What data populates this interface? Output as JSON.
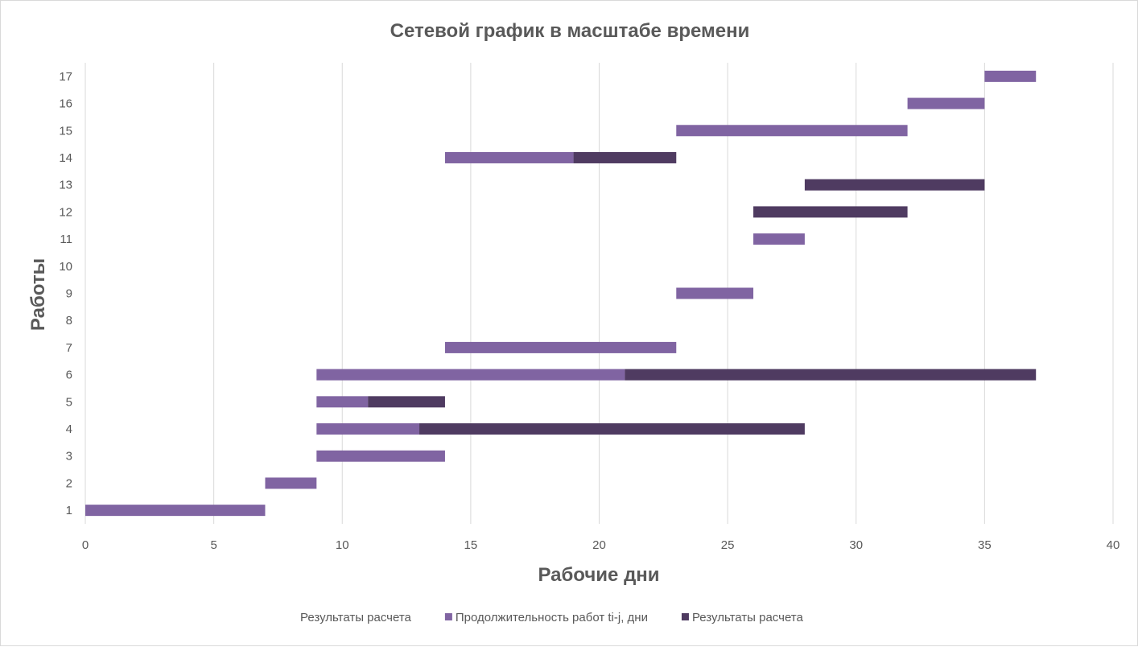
{
  "chart_data": {
    "type": "bar",
    "orientation": "horizontal",
    "stacked": true,
    "title": "Сетевой график в масштабе времени",
    "xlabel": "Рабочие дни",
    "ylabel": "Работы",
    "xlim": [
      0,
      40
    ],
    "xticks": [
      0,
      5,
      10,
      15,
      20,
      25,
      30,
      35,
      40
    ],
    "categories": [
      "1",
      "2",
      "3",
      "4",
      "5",
      "6",
      "7",
      "8",
      "9",
      "10",
      "11",
      "12",
      "13",
      "14",
      "15",
      "16",
      "17"
    ],
    "grid": true,
    "legend_position": "bottom",
    "series": [
      {
        "name": "Результаты расчета",
        "color": "none",
        "values": [
          0,
          7,
          9,
          9,
          9,
          9,
          14,
          0,
          23,
          0,
          26,
          26,
          28,
          14,
          23,
          32,
          35
        ]
      },
      {
        "name": "Продолжительность работ ti-j, дни",
        "color": "#8064a2",
        "values": [
          7,
          2,
          5,
          4,
          2,
          12,
          9,
          0,
          3,
          0,
          2,
          0,
          0,
          5,
          9,
          3,
          2
        ]
      },
      {
        "name": "Результаты расчета",
        "color": "#4f3b61",
        "values": [
          0,
          0,
          0,
          15,
          3,
          16,
          0,
          0,
          0,
          0,
          0,
          6,
          7,
          4,
          0,
          0,
          0
        ]
      }
    ]
  }
}
